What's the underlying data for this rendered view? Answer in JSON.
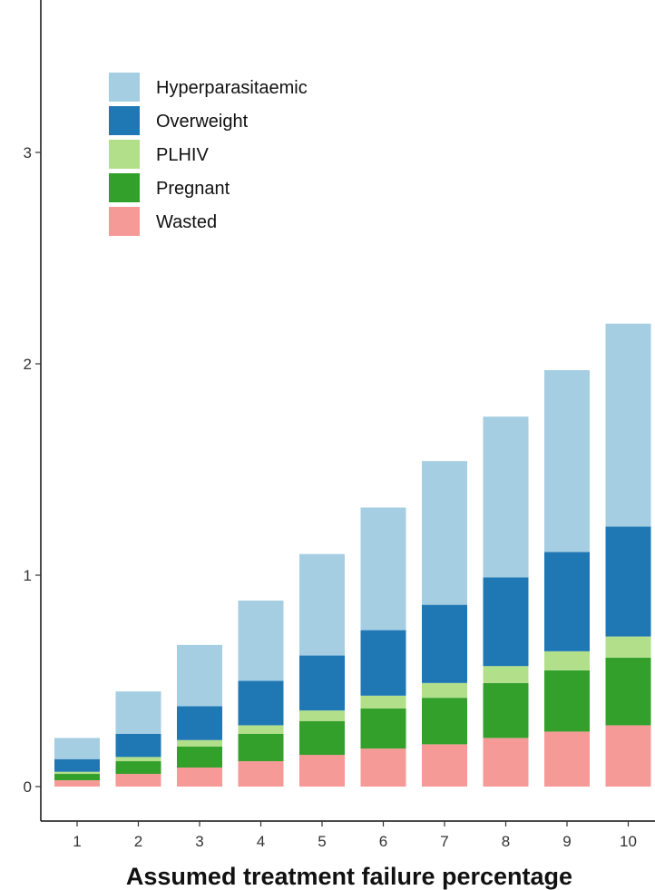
{
  "chart_data": {
    "type": "bar",
    "stacked": true,
    "title": "",
    "xlabel": "Assumed treatment failure percentage",
    "ylabel": "",
    "ylim": [
      -0.15,
      3.7
    ],
    "yticks": [
      0,
      1,
      2,
      3
    ],
    "grid": false,
    "legend_position": "top-left",
    "categories": [
      "1",
      "2",
      "3",
      "4",
      "5",
      "6",
      "7",
      "8",
      "9",
      "10"
    ],
    "series": [
      {
        "name": "Wasted",
        "color": "#f69a98",
        "values": [
          0.03,
          0.06,
          0.09,
          0.12,
          0.15,
          0.18,
          0.2,
          0.23,
          0.26,
          0.29
        ]
      },
      {
        "name": "Pregnant",
        "color": "#33a02c",
        "values": [
          0.03,
          0.06,
          0.1,
          0.13,
          0.16,
          0.19,
          0.22,
          0.26,
          0.29,
          0.32
        ]
      },
      {
        "name": "PLHIV",
        "color": "#b2df8a",
        "values": [
          0.01,
          0.02,
          0.03,
          0.04,
          0.05,
          0.06,
          0.07,
          0.08,
          0.09,
          0.1
        ]
      },
      {
        "name": "Overweight",
        "color": "#1f78b4",
        "values": [
          0.06,
          0.11,
          0.16,
          0.21,
          0.26,
          0.31,
          0.37,
          0.42,
          0.47,
          0.52
        ]
      },
      {
        "name": "Hyperparasitaemic",
        "color": "#a6cee3",
        "values": [
          0.1,
          0.2,
          0.29,
          0.38,
          0.48,
          0.58,
          0.68,
          0.76,
          0.86,
          0.96
        ]
      }
    ],
    "legend_order": [
      "Hyperparasitaemic",
      "Overweight",
      "PLHIV",
      "Pregnant",
      "Wasted"
    ]
  }
}
